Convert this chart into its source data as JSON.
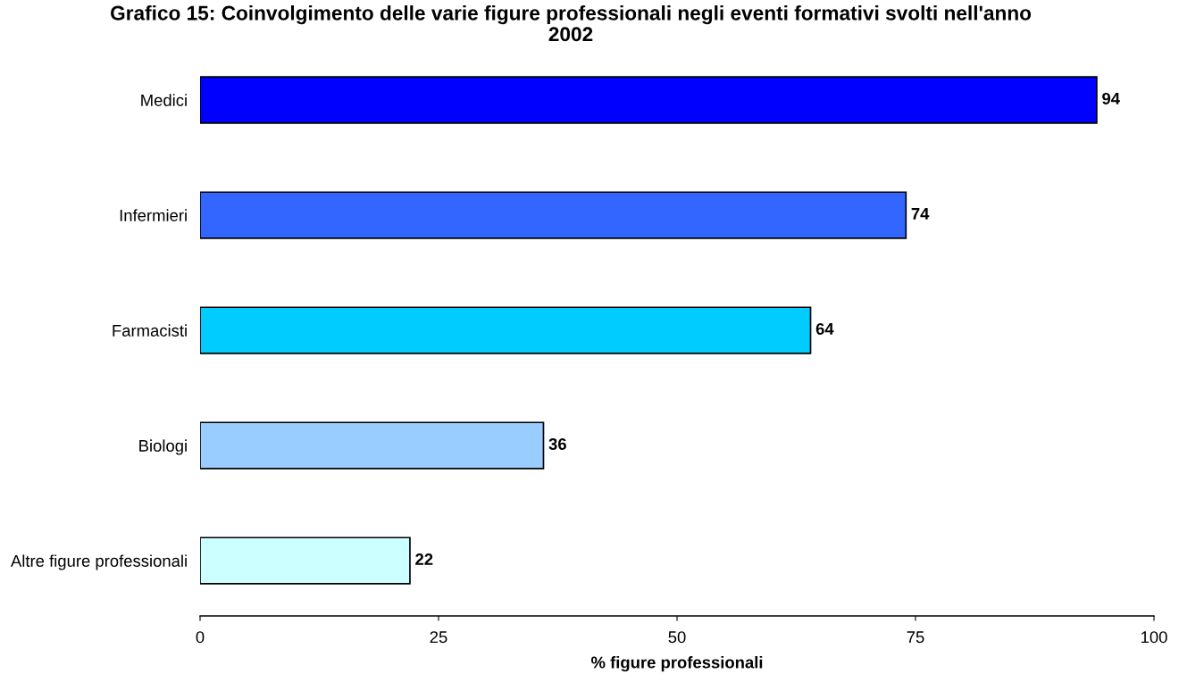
{
  "chart_data": {
    "type": "bar",
    "orientation": "horizontal",
    "title": "Grafico 15: Coinvolgimento delle varie figure professionali negli eventi formativi svolti nell'anno 2002",
    "xlabel": "% figure professionali",
    "categories": [
      "Medici",
      "Infermieri",
      "Farmacisti",
      "Biologi",
      "Altre figure professionali"
    ],
    "values": [
      94,
      74,
      64,
      36,
      22
    ],
    "colors": [
      "#0000ff",
      "#3366ff",
      "#00ccff",
      "#99ccff",
      "#ccffff"
    ],
    "xlim": [
      0,
      100
    ],
    "xticks": [
      0,
      25,
      50,
      75,
      100
    ],
    "data_labels": true
  }
}
